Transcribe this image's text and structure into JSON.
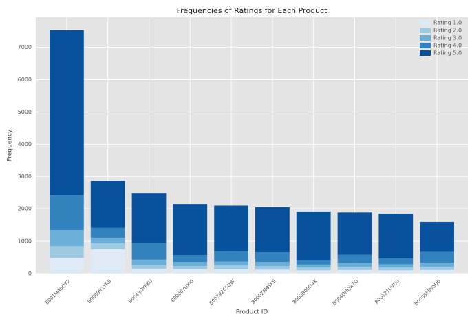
{
  "chart_data": {
    "type": "stacked_bar",
    "title": "Frequencies of Ratings for Each Product",
    "xlabel": "Product ID",
    "ylabel": "Frequency",
    "categories": [
      "B001MA0QY2",
      "B0009V1YR8",
      "B0043OYFKU",
      "B0000YUXI0",
      "B003V265QW",
      "B000ZMBSPE",
      "B003B00Q4K",
      "B004OHQR1Q",
      "B00121UVU0",
      "B0009F5V5U0"
    ],
    "series": [
      {
        "name": "Rating 1.0",
        "color": "#deebf7",
        "values": [
          490,
          750,
          150,
          130,
          130,
          120,
          100,
          110,
          100,
          110
        ]
      },
      {
        "name": "Rating 2.0",
        "color": "#9ecae1",
        "values": [
          360,
          190,
          110,
          100,
          120,
          110,
          90,
          100,
          90,
          100
        ]
      },
      {
        "name": "Rating 3.0",
        "color": "#6baed6",
        "values": [
          490,
          170,
          170,
          130,
          120,
          130,
          90,
          120,
          100,
          130
        ]
      },
      {
        "name": "Rating 4.0",
        "color": "#3182bd",
        "values": [
          1090,
          300,
          530,
          210,
          330,
          300,
          120,
          250,
          180,
          330
        ]
      },
      {
        "name": "Rating 5.0",
        "color": "#08519c",
        "values": [
          5100,
          1460,
          1530,
          1580,
          1400,
          1390,
          1520,
          1310,
          1380,
          930
        ]
      }
    ],
    "ylim": [
      0,
      7930
    ],
    "yticks": [
      0,
      1000,
      2000,
      3000,
      4000,
      5000,
      6000,
      7000
    ],
    "grid": true,
    "legend": "upper right"
  }
}
